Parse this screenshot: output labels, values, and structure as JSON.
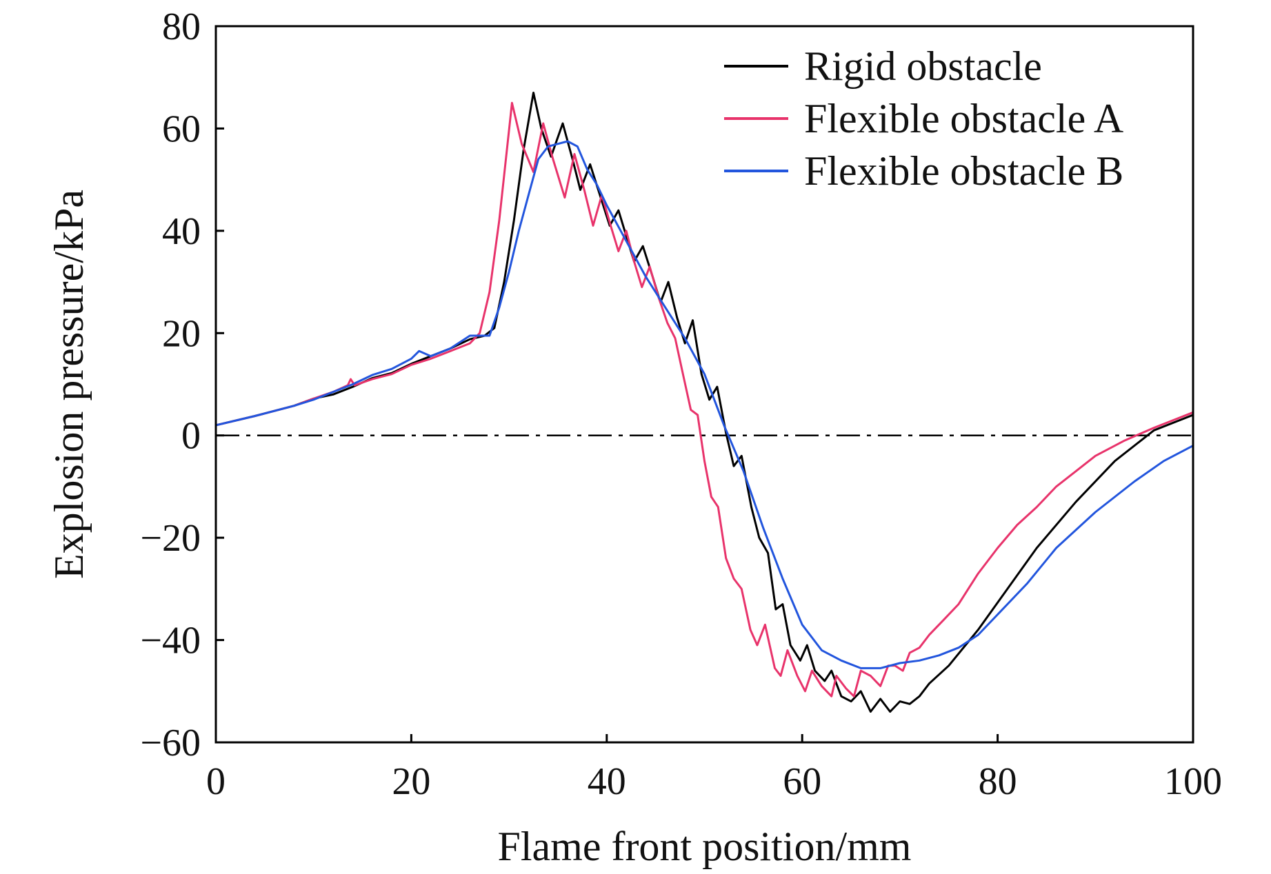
{
  "chart_data": {
    "type": "line",
    "xlabel": "Flame front position/mm",
    "ylabel": "Explosion pressure/kPa",
    "xlim": [
      0,
      100
    ],
    "ylim": [
      -60,
      80
    ],
    "xticks": [
      0,
      20,
      40,
      60,
      80,
      100
    ],
    "yticks": [
      80,
      60,
      40,
      20,
      0,
      -20,
      -40,
      -60
    ],
    "ytick_labels": [
      "80",
      "60",
      "40",
      "20",
      "0",
      "−20",
      "−40",
      "−60"
    ],
    "legend_position": "top-right",
    "reference_line": {
      "y": 0,
      "style": "dash-dot",
      "color": "#000000"
    },
    "series": [
      {
        "name": "Rigid obstacle",
        "color": "#000000",
        "points": [
          [
            0,
            2.0
          ],
          [
            4,
            3.8
          ],
          [
            8,
            5.8
          ],
          [
            10,
            7.2
          ],
          [
            12,
            8.0
          ],
          [
            14,
            9.5
          ],
          [
            16,
            11.2
          ],
          [
            18,
            12.2
          ],
          [
            20,
            14.0
          ],
          [
            22,
            15.5
          ],
          [
            24,
            17.0
          ],
          [
            26,
            18.8
          ],
          [
            27.5,
            19.5
          ],
          [
            28.5,
            21.0
          ],
          [
            29.5,
            30.0
          ],
          [
            30.5,
            42.0
          ],
          [
            31.5,
            56.0
          ],
          [
            32.5,
            67.0
          ],
          [
            33.3,
            60.0
          ],
          [
            34.3,
            54.5
          ],
          [
            35.5,
            61.0
          ],
          [
            36.5,
            54.0
          ],
          [
            37.3,
            48.0
          ],
          [
            38.3,
            53.0
          ],
          [
            39.3,
            47.0
          ],
          [
            40.3,
            41.0
          ],
          [
            41.2,
            44.0
          ],
          [
            42.0,
            39.0
          ],
          [
            42.8,
            34.0
          ],
          [
            43.7,
            37.0
          ],
          [
            44.7,
            31.0
          ],
          [
            45.5,
            26.0
          ],
          [
            46.3,
            30.0
          ],
          [
            47.2,
            23.0
          ],
          [
            48.0,
            18.0
          ],
          [
            48.8,
            22.5
          ],
          [
            49.7,
            12.0
          ],
          [
            50.5,
            7.0
          ],
          [
            51.3,
            9.5
          ],
          [
            52.2,
            0.5
          ],
          [
            53.0,
            -6.0
          ],
          [
            53.8,
            -4.0
          ],
          [
            54.8,
            -14.0
          ],
          [
            55.6,
            -20.0
          ],
          [
            56.5,
            -23.0
          ],
          [
            57.3,
            -34.0
          ],
          [
            58.0,
            -33.0
          ],
          [
            58.8,
            -41.0
          ],
          [
            59.8,
            -44.0
          ],
          [
            60.5,
            -41.0
          ],
          [
            61.3,
            -46.0
          ],
          [
            62.3,
            -48.0
          ],
          [
            63.0,
            -46.0
          ],
          [
            64.0,
            -51.0
          ],
          [
            65.0,
            -52.0
          ],
          [
            66.0,
            -50.0
          ],
          [
            67.0,
            -54.0
          ],
          [
            68.0,
            -51.5
          ],
          [
            69.0,
            -54.0
          ],
          [
            70.0,
            -52.0
          ],
          [
            71.0,
            -52.5
          ],
          [
            72.0,
            -51.0
          ],
          [
            73.0,
            -48.5
          ],
          [
            75.0,
            -45.0
          ],
          [
            78.0,
            -38.0
          ],
          [
            81.0,
            -30.0
          ],
          [
            84.0,
            -22.0
          ],
          [
            88.0,
            -13.0
          ],
          [
            92.0,
            -5.0
          ],
          [
            96.0,
            1.0
          ],
          [
            100.0,
            4.0
          ]
        ]
      },
      {
        "name": "Flexible obstacle A",
        "color": "#e8336b",
        "points": [
          [
            0,
            2.0
          ],
          [
            4,
            3.8
          ],
          [
            8,
            5.8
          ],
          [
            10,
            7.2
          ],
          [
            12,
            8.5
          ],
          [
            13.5,
            9.8
          ],
          [
            13.8,
            11.0
          ],
          [
            14.2,
            9.8
          ],
          [
            16,
            11.0
          ],
          [
            18,
            12.0
          ],
          [
            20,
            13.8
          ],
          [
            22,
            15.0
          ],
          [
            24,
            16.5
          ],
          [
            26,
            18.0
          ],
          [
            27,
            20.0
          ],
          [
            28,
            28.0
          ],
          [
            29,
            42.0
          ],
          [
            30.3,
            65.0
          ],
          [
            31.3,
            57.0
          ],
          [
            32.5,
            51.5
          ],
          [
            33.5,
            61.0
          ],
          [
            34.5,
            54.0
          ],
          [
            35.7,
            46.5
          ],
          [
            36.7,
            55.0
          ],
          [
            37.7,
            48.0
          ],
          [
            38.6,
            41.0
          ],
          [
            39.5,
            47.0
          ],
          [
            40.4,
            41.0
          ],
          [
            41.2,
            36.0
          ],
          [
            42.0,
            40.0
          ],
          [
            42.8,
            34.0
          ],
          [
            43.6,
            29.0
          ],
          [
            44.4,
            33.0
          ],
          [
            45.3,
            27.0
          ],
          [
            46.2,
            22.0
          ],
          [
            47.0,
            19.0
          ],
          [
            47.8,
            12.0
          ],
          [
            48.6,
            5.0
          ],
          [
            49.3,
            4.0
          ],
          [
            50.0,
            -5.0
          ],
          [
            50.7,
            -12.0
          ],
          [
            51.4,
            -14.0
          ],
          [
            52.2,
            -24.0
          ],
          [
            53.0,
            -28.0
          ],
          [
            53.8,
            -30.0
          ],
          [
            54.7,
            -38.0
          ],
          [
            55.4,
            -41.0
          ],
          [
            56.2,
            -37.0
          ],
          [
            57.2,
            -45.5
          ],
          [
            57.8,
            -47.0
          ],
          [
            58.5,
            -42.0
          ],
          [
            59.5,
            -47.0
          ],
          [
            60.3,
            -50.0
          ],
          [
            61.0,
            -46.0
          ],
          [
            62.0,
            -49.0
          ],
          [
            63.0,
            -51.0
          ],
          [
            63.5,
            -47.0
          ],
          [
            64.5,
            -49.5
          ],
          [
            65.3,
            -51.0
          ],
          [
            66.0,
            -46.0
          ],
          [
            67.0,
            -47.0
          ],
          [
            68.0,
            -49.0
          ],
          [
            68.8,
            -45.0
          ],
          [
            69.5,
            -45.0
          ],
          [
            70.3,
            -46.0
          ],
          [
            71.0,
            -42.5
          ],
          [
            72.0,
            -41.5
          ],
          [
            73.0,
            -39.0
          ],
          [
            74.5,
            -36.0
          ],
          [
            76.0,
            -33.0
          ],
          [
            78.0,
            -27.0
          ],
          [
            80.0,
            -22.0
          ],
          [
            82.0,
            -17.5
          ],
          [
            84.0,
            -14.0
          ],
          [
            86.0,
            -10.0
          ],
          [
            88.0,
            -7.0
          ],
          [
            90.0,
            -4.0
          ],
          [
            93.0,
            -1.0
          ],
          [
            96.0,
            1.5
          ],
          [
            100.0,
            4.5
          ]
        ]
      },
      {
        "name": "Flexible obstacle B",
        "color": "#2255dd",
        "points": [
          [
            0,
            2.0
          ],
          [
            4,
            3.8
          ],
          [
            8,
            5.8
          ],
          [
            10,
            7.0
          ],
          [
            12,
            8.5
          ],
          [
            14,
            10.0
          ],
          [
            16,
            11.8
          ],
          [
            18,
            13.0
          ],
          [
            20,
            15.0
          ],
          [
            20.8,
            16.5
          ],
          [
            22,
            15.5
          ],
          [
            24,
            17.0
          ],
          [
            26,
            19.5
          ],
          [
            28,
            19.5
          ],
          [
            29,
            25.0
          ],
          [
            30,
            32.0
          ],
          [
            31,
            40.0
          ],
          [
            32,
            47.0
          ],
          [
            33,
            54.0
          ],
          [
            34,
            56.5
          ],
          [
            35,
            57.0
          ],
          [
            36,
            57.5
          ],
          [
            37,
            56.5
          ],
          [
            38,
            52.0
          ],
          [
            39,
            49.0
          ],
          [
            40,
            45.0
          ],
          [
            42,
            38.0
          ],
          [
            44,
            31.0
          ],
          [
            46,
            25.0
          ],
          [
            48,
            19.0
          ],
          [
            50,
            12.0
          ],
          [
            51,
            7.0
          ],
          [
            52,
            2.0
          ],
          [
            53,
            -2.5
          ],
          [
            54,
            -7.0
          ],
          [
            56,
            -18.0
          ],
          [
            58,
            -28.0
          ],
          [
            60,
            -37.0
          ],
          [
            62,
            -42.0
          ],
          [
            64,
            -44.0
          ],
          [
            66,
            -45.5
          ],
          [
            68,
            -45.5
          ],
          [
            70,
            -44.5
          ],
          [
            72,
            -44.0
          ],
          [
            74,
            -43.0
          ],
          [
            76,
            -41.5
          ],
          [
            78,
            -39.0
          ],
          [
            80,
            -35.0
          ],
          [
            83,
            -29.0
          ],
          [
            86,
            -22.0
          ],
          [
            90,
            -15.0
          ],
          [
            94,
            -9.0
          ],
          [
            97,
            -5.0
          ],
          [
            100,
            -2.0
          ]
        ]
      }
    ]
  }
}
